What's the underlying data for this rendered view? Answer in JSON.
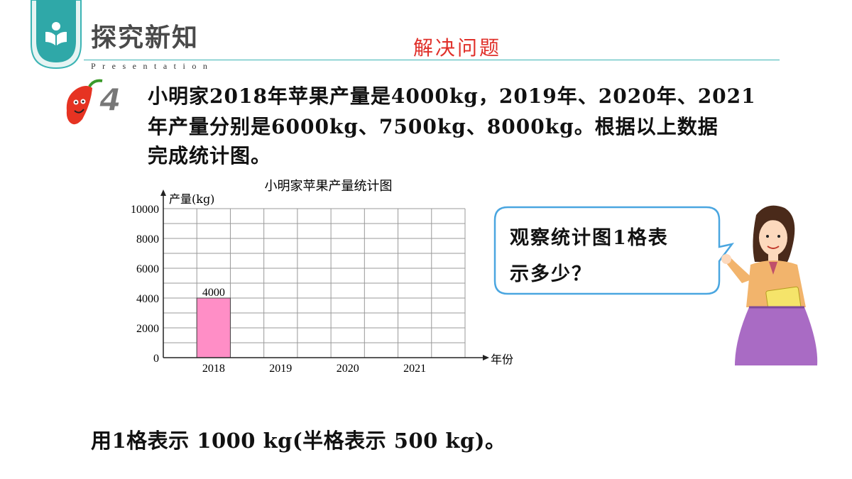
{
  "header": {
    "title": "探究新知",
    "subtitle": "Presentation",
    "section_title": "解决问题"
  },
  "problem": {
    "number": "4",
    "line1": "小明家2018年苹果产量是4000kg，2019年、2020年、2021",
    "line2": "年产量分别是6000kg、7500kg、8000kg。根据以上数据",
    "line3": "完成统计图。"
  },
  "chart_data": {
    "type": "bar",
    "title": "小明家苹果产量统计图",
    "ylabel": "产量(kg)",
    "xlabel": "年份",
    "categories": [
      "2018",
      "2019",
      "2020",
      "2021"
    ],
    "values": [
      4000,
      null,
      null,
      null
    ],
    "data_labels": [
      "4000",
      "",
      "",
      ""
    ],
    "yticks": [
      "0",
      "2000",
      "4000",
      "6000",
      "8000",
      "10000"
    ],
    "ylim": [
      0,
      10000
    ],
    "grid": true,
    "bar_color": "#ff8ec6"
  },
  "bubble": {
    "line1": "观察统计图1格表",
    "line2": "示多少？"
  },
  "footer": {
    "text": "用1格表示 1000 kg(半格表示 500 kg)。"
  },
  "colors": {
    "accent": "#3bb4b4",
    "section_title": "#e0302a",
    "bubble_border": "#4aa6e0"
  }
}
